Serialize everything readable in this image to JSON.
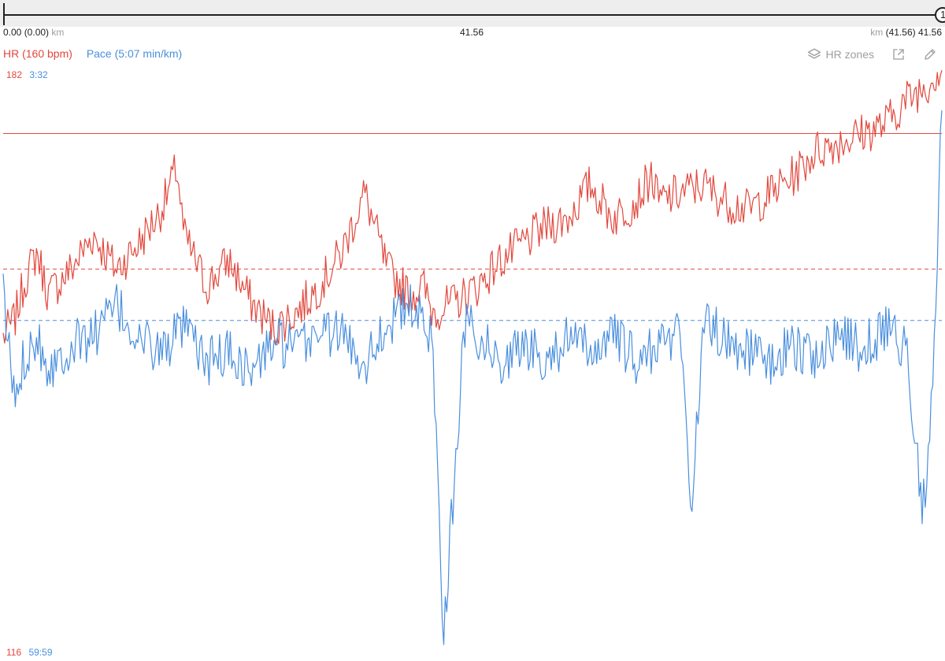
{
  "range_bar": {
    "start_value": "0.00 (0.00)",
    "start_unit": "km",
    "mid_value": "41.56",
    "end_unit": "km",
    "end_value": "(41.56) 41.56",
    "handle_label": "1"
  },
  "legend": {
    "hr_label": "HR (160 bpm)",
    "pace_label": "Pace (5:07 min/km)"
  },
  "toolbar": {
    "hr_zones_label": "HR zones",
    "icons": [
      "layers-icon",
      "external-link-icon",
      "edit-pencil-icon"
    ]
  },
  "scale": {
    "hr_max": "182",
    "pace_max": "3:32",
    "hr_min": "116",
    "pace_min": "59:59"
  },
  "colors": {
    "hr": "#e2483d",
    "pace": "#4a8fde",
    "muted": "#9e9e9e"
  },
  "chart_data": {
    "type": "line",
    "x_range_km": [
      0,
      41.56
    ],
    "hr_range_bpm": [
      116,
      182
    ],
    "pace_axis_min_per_km": [
      "59:59",
      "3:32"
    ],
    "series": [
      {
        "name": "HR (160 bpm)",
        "axis": "hr",
        "x_km": [
          0,
          0.5,
          1,
          1.5,
          2,
          3,
          4,
          5,
          6,
          7,
          7.7,
          8,
          9,
          10,
          11,
          12,
          13,
          14,
          15,
          16,
          17,
          18,
          18.6,
          19,
          20,
          21,
          22,
          23,
          24,
          25,
          26,
          27,
          28,
          28.7,
          29,
          30,
          31,
          32,
          33,
          34,
          35,
          36,
          37,
          38,
          39,
          40,
          41,
          41.56
        ],
        "values": [
          152,
          154,
          159,
          162,
          157,
          160,
          164,
          160,
          163,
          167,
          172,
          164,
          158,
          161,
          156,
          153,
          155,
          158,
          162,
          169,
          160,
          157,
          158,
          155,
          156,
          158,
          161,
          163,
          165,
          166,
          170,
          166,
          168,
          171,
          168,
          169,
          170,
          168,
          167,
          169,
          171,
          174,
          175,
          176,
          177,
          180,
          182,
          184
        ]
      },
      {
        "name": "Pace (5:07 min/km)",
        "axis": "pace",
        "x_km": [
          0,
          0.5,
          1,
          1.5,
          2,
          3,
          4,
          5,
          6,
          7,
          8,
          9,
          10,
          11,
          12,
          13,
          14,
          15,
          16,
          17,
          18,
          19,
          19.5,
          20,
          20.5,
          21,
          22,
          23,
          24,
          25,
          26,
          27,
          28,
          29,
          30,
          30.5,
          31,
          32,
          33,
          34,
          35,
          36,
          37,
          38,
          39,
          40,
          40.7,
          41.2,
          41.56
        ],
        "values_rel": [
          0.62,
          0.43,
          0.52,
          0.55,
          0.49,
          0.53,
          0.55,
          0.6,
          0.54,
          0.52,
          0.56,
          0.5,
          0.52,
          0.48,
          0.54,
          0.52,
          0.56,
          0.55,
          0.5,
          0.57,
          0.6,
          0.55,
          0.02,
          0.3,
          0.6,
          0.55,
          0.5,
          0.53,
          0.51,
          0.54,
          0.52,
          0.55,
          0.5,
          0.53,
          0.56,
          0.23,
          0.58,
          0.54,
          0.52,
          0.5,
          0.53,
          0.51,
          0.55,
          0.52,
          0.56,
          0.53,
          0.22,
          0.48,
          0.98
        ]
      }
    ],
    "reference_lines": [
      {
        "axis": "hr",
        "value": 176,
        "style": "solid",
        "color": "#e2483d"
      },
      {
        "axis": "hr",
        "value": 160,
        "style": "dashed",
        "color": "#e2483d"
      },
      {
        "axis": "pace",
        "value_rel": 0.575,
        "label": "5:07",
        "style": "dashed",
        "color": "#4a8fde"
      }
    ],
    "grid": false,
    "legend_position": "top-left"
  }
}
